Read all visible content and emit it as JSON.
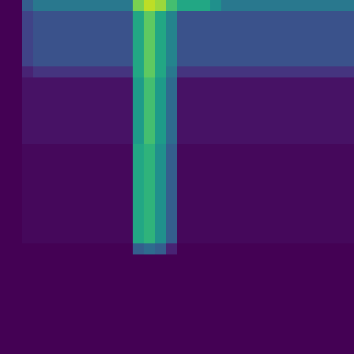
{
  "chart_data": {
    "type": "heatmap",
    "color": "viridis",
    "color_range": [
      0,
      1
    ],
    "tick_labels": false,
    "cells": [
      [
        0,
        0,
        0.3,
        0.4,
        0.4,
        0.4,
        0.4,
        0.4,
        0.4,
        0.4,
        0.4,
        0.4,
        0.8,
        0.9,
        0.85,
        0.7,
        0.6,
        0.6,
        0.6,
        0.5,
        0.4,
        0.4,
        0.4,
        0.4,
        0.4,
        0.4,
        0.4,
        0.4,
        0.4,
        0.4,
        0.4,
        0.4
      ],
      [
        0,
        0,
        0.2,
        0.25,
        0.25,
        0.25,
        0.25,
        0.25,
        0.25,
        0.25,
        0.25,
        0.25,
        0.6,
        0.75,
        0.6,
        0.45,
        0.25,
        0.25,
        0.25,
        0.25,
        0.25,
        0.25,
        0.25,
        0.25,
        0.25,
        0.25,
        0.25,
        0.25,
        0.25,
        0.25,
        0.25,
        0.25
      ],
      [
        0,
        0,
        0.2,
        0.25,
        0.25,
        0.25,
        0.25,
        0.25,
        0.25,
        0.25,
        0.25,
        0.25,
        0.6,
        0.75,
        0.6,
        0.45,
        0.25,
        0.25,
        0.25,
        0.25,
        0.25,
        0.25,
        0.25,
        0.25,
        0.25,
        0.25,
        0.25,
        0.25,
        0.25,
        0.25,
        0.25,
        0.25
      ],
      [
        0,
        0,
        0.2,
        0.25,
        0.25,
        0.25,
        0.25,
        0.25,
        0.25,
        0.25,
        0.25,
        0.25,
        0.6,
        0.75,
        0.6,
        0.45,
        0.25,
        0.25,
        0.25,
        0.25,
        0.25,
        0.25,
        0.25,
        0.25,
        0.25,
        0.25,
        0.25,
        0.25,
        0.25,
        0.25,
        0.25,
        0.25
      ],
      [
        0,
        0,
        0.2,
        0.25,
        0.25,
        0.25,
        0.25,
        0.25,
        0.25,
        0.25,
        0.25,
        0.25,
        0.6,
        0.75,
        0.6,
        0.45,
        0.25,
        0.25,
        0.25,
        0.25,
        0.25,
        0.25,
        0.25,
        0.25,
        0.25,
        0.25,
        0.25,
        0.25,
        0.25,
        0.25,
        0.25,
        0.25
      ],
      [
        0,
        0,
        0.2,
        0.25,
        0.25,
        0.25,
        0.25,
        0.25,
        0.25,
        0.25,
        0.25,
        0.25,
        0.6,
        0.75,
        0.6,
        0.45,
        0.25,
        0.25,
        0.25,
        0.25,
        0.25,
        0.25,
        0.25,
        0.25,
        0.25,
        0.25,
        0.25,
        0.25,
        0.25,
        0.25,
        0.25,
        0.25
      ],
      [
        0,
        0,
        0.1,
        0.15,
        0.15,
        0.15,
        0.15,
        0.15,
        0.15,
        0.15,
        0.15,
        0.15,
        0.6,
        0.75,
        0.6,
        0.4,
        0.15,
        0.15,
        0.15,
        0.15,
        0.15,
        0.15,
        0.15,
        0.15,
        0.15,
        0.15,
        0.15,
        0.15,
        0.15,
        0.15,
        0.15,
        0.15
      ],
      [
        0,
        0,
        0.05,
        0.05,
        0.05,
        0.05,
        0.05,
        0.05,
        0.05,
        0.05,
        0.05,
        0.05,
        0.55,
        0.7,
        0.55,
        0.35,
        0.05,
        0.05,
        0.05,
        0.05,
        0.05,
        0.05,
        0.05,
        0.05,
        0.05,
        0.05,
        0.05,
        0.05,
        0.05,
        0.05,
        0.05,
        0.05
      ],
      [
        0,
        0,
        0.05,
        0.05,
        0.05,
        0.05,
        0.05,
        0.05,
        0.05,
        0.05,
        0.05,
        0.05,
        0.55,
        0.7,
        0.55,
        0.35,
        0.05,
        0.05,
        0.05,
        0.05,
        0.05,
        0.05,
        0.05,
        0.05,
        0.05,
        0.05,
        0.05,
        0.05,
        0.05,
        0.05,
        0.05,
        0.05
      ],
      [
        0,
        0,
        0.05,
        0.05,
        0.05,
        0.05,
        0.05,
        0.05,
        0.05,
        0.05,
        0.05,
        0.05,
        0.55,
        0.7,
        0.55,
        0.35,
        0.05,
        0.05,
        0.05,
        0.05,
        0.05,
        0.05,
        0.05,
        0.05,
        0.05,
        0.05,
        0.05,
        0.05,
        0.05,
        0.05,
        0.05,
        0.05
      ],
      [
        0,
        0,
        0.05,
        0.05,
        0.05,
        0.05,
        0.05,
        0.05,
        0.05,
        0.05,
        0.05,
        0.05,
        0.55,
        0.7,
        0.55,
        0.35,
        0.05,
        0.05,
        0.05,
        0.05,
        0.05,
        0.05,
        0.05,
        0.05,
        0.05,
        0.05,
        0.05,
        0.05,
        0.05,
        0.05,
        0.05,
        0.05
      ],
      [
        0,
        0,
        0.05,
        0.05,
        0.05,
        0.05,
        0.05,
        0.05,
        0.05,
        0.05,
        0.05,
        0.05,
        0.55,
        0.7,
        0.55,
        0.35,
        0.05,
        0.05,
        0.05,
        0.05,
        0.05,
        0.05,
        0.05,
        0.05,
        0.05,
        0.05,
        0.05,
        0.05,
        0.05,
        0.05,
        0.05,
        0.05
      ],
      [
        0,
        0,
        0.05,
        0.05,
        0.05,
        0.05,
        0.05,
        0.05,
        0.05,
        0.05,
        0.05,
        0.05,
        0.55,
        0.7,
        0.55,
        0.35,
        0.05,
        0.05,
        0.05,
        0.05,
        0.05,
        0.05,
        0.05,
        0.05,
        0.05,
        0.05,
        0.05,
        0.05,
        0.05,
        0.05,
        0.05,
        0.05
      ],
      [
        0,
        0,
        0.02,
        0.02,
        0.02,
        0.02,
        0.02,
        0.02,
        0.02,
        0.02,
        0.02,
        0.02,
        0.6,
        0.65,
        0.5,
        0.3,
        0.02,
        0.02,
        0.02,
        0.02,
        0.02,
        0.02,
        0.02,
        0.02,
        0.02,
        0.02,
        0.02,
        0.02,
        0.02,
        0.02,
        0.02,
        0.02
      ],
      [
        0,
        0,
        0.02,
        0.02,
        0.02,
        0.02,
        0.02,
        0.02,
        0.02,
        0.02,
        0.02,
        0.02,
        0.6,
        0.65,
        0.5,
        0.3,
        0.02,
        0.02,
        0.02,
        0.02,
        0.02,
        0.02,
        0.02,
        0.02,
        0.02,
        0.02,
        0.02,
        0.02,
        0.02,
        0.02,
        0.02,
        0.02
      ],
      [
        0,
        0,
        0.02,
        0.02,
        0.02,
        0.02,
        0.02,
        0.02,
        0.02,
        0.02,
        0.02,
        0.02,
        0.6,
        0.65,
        0.5,
        0.3,
        0.02,
        0.02,
        0.02,
        0.02,
        0.02,
        0.02,
        0.02,
        0.02,
        0.02,
        0.02,
        0.02,
        0.02,
        0.02,
        0.02,
        0.02,
        0.02
      ],
      [
        0,
        0,
        0.02,
        0.02,
        0.02,
        0.02,
        0.02,
        0.02,
        0.02,
        0.02,
        0.02,
        0.02,
        0.6,
        0.65,
        0.5,
        0.3,
        0.02,
        0.02,
        0.02,
        0.02,
        0.02,
        0.02,
        0.02,
        0.02,
        0.02,
        0.02,
        0.02,
        0.02,
        0.02,
        0.02,
        0.02,
        0.02
      ],
      [
        0,
        0,
        0.02,
        0.02,
        0.02,
        0.02,
        0.02,
        0.02,
        0.02,
        0.02,
        0.02,
        0.02,
        0.6,
        0.65,
        0.5,
        0.3,
        0.02,
        0.02,
        0.02,
        0.02,
        0.02,
        0.02,
        0.02,
        0.02,
        0.02,
        0.02,
        0.02,
        0.02,
        0.02,
        0.02,
        0.02,
        0.02
      ],
      [
        0,
        0,
        0.02,
        0.02,
        0.02,
        0.02,
        0.02,
        0.02,
        0.02,
        0.02,
        0.02,
        0.02,
        0.6,
        0.65,
        0.5,
        0.3,
        0.02,
        0.02,
        0.02,
        0.02,
        0.02,
        0.02,
        0.02,
        0.02,
        0.02,
        0.02,
        0.02,
        0.02,
        0.02,
        0.02,
        0.02,
        0.02
      ],
      [
        0,
        0,
        0.02,
        0.02,
        0.02,
        0.02,
        0.02,
        0.02,
        0.02,
        0.02,
        0.02,
        0.02,
        0.6,
        0.65,
        0.5,
        0.3,
        0.02,
        0.02,
        0.02,
        0.02,
        0.02,
        0.02,
        0.02,
        0.02,
        0.02,
        0.02,
        0.02,
        0.02,
        0.02,
        0.02,
        0.02,
        0.02
      ],
      [
        0,
        0,
        0.02,
        0.02,
        0.02,
        0.02,
        0.02,
        0.02,
        0.02,
        0.02,
        0.02,
        0.02,
        0.6,
        0.65,
        0.5,
        0.3,
        0.02,
        0.02,
        0.02,
        0.02,
        0.02,
        0.02,
        0.02,
        0.02,
        0.02,
        0.02,
        0.02,
        0.02,
        0.02,
        0.02,
        0.02,
        0.02
      ],
      [
        0,
        0,
        0.02,
        0.02,
        0.02,
        0.02,
        0.02,
        0.02,
        0.02,
        0.02,
        0.02,
        0.02,
        0.6,
        0.65,
        0.5,
        0.3,
        0.02,
        0.02,
        0.02,
        0.02,
        0.02,
        0.02,
        0.02,
        0.02,
        0.02,
        0.02,
        0.02,
        0.02,
        0.02,
        0.02,
        0.02,
        0.02
      ],
      [
        0,
        0,
        0,
        0,
        0,
        0,
        0,
        0,
        0,
        0,
        0,
        0,
        0.3,
        0.35,
        0.3,
        0.1,
        0,
        0,
        0,
        0,
        0,
        0,
        0,
        0,
        0,
        0,
        0,
        0,
        0,
        0,
        0,
        0
      ],
      [
        0,
        0,
        0,
        0,
        0,
        0,
        0,
        0,
        0,
        0,
        0,
        0,
        0,
        0,
        0,
        0,
        0,
        0,
        0,
        0,
        0,
        0,
        0,
        0,
        0,
        0,
        0,
        0,
        0,
        0,
        0,
        0
      ],
      [
        0,
        0,
        0,
        0,
        0,
        0,
        0,
        0,
        0,
        0,
        0,
        0,
        0,
        0,
        0,
        0,
        0,
        0,
        0,
        0,
        0,
        0,
        0,
        0,
        0,
        0,
        0,
        0,
        0,
        0,
        0,
        0
      ],
      [
        0,
        0,
        0,
        0,
        0,
        0,
        0,
        0,
        0,
        0,
        0,
        0,
        0,
        0,
        0,
        0,
        0,
        0,
        0,
        0,
        0,
        0,
        0,
        0,
        0,
        0,
        0,
        0,
        0,
        0,
        0,
        0
      ],
      [
        0,
        0,
        0,
        0,
        0,
        0,
        0,
        0,
        0,
        0,
        0,
        0,
        0,
        0,
        0,
        0,
        0,
        0,
        0,
        0,
        0,
        0,
        0,
        0,
        0,
        0,
        0,
        0,
        0,
        0,
        0,
        0
      ],
      [
        0,
        0,
        0,
        0,
        0,
        0,
        0,
        0,
        0,
        0,
        0,
        0,
        0,
        0,
        0,
        0,
        0,
        0,
        0,
        0,
        0,
        0,
        0,
        0,
        0,
        0,
        0,
        0,
        0,
        0,
        0,
        0
      ],
      [
        0,
        0,
        0,
        0,
        0,
        0,
        0,
        0,
        0,
        0,
        0,
        0,
        0,
        0,
        0,
        0,
        0,
        0,
        0,
        0,
        0,
        0,
        0,
        0,
        0,
        0,
        0,
        0,
        0,
        0,
        0,
        0
      ],
      [
        0,
        0,
        0,
        0,
        0,
        0,
        0,
        0,
        0,
        0,
        0,
        0,
        0,
        0,
        0,
        0,
        0,
        0,
        0,
        0,
        0,
        0,
        0,
        0,
        0,
        0,
        0,
        0,
        0,
        0,
        0,
        0
      ],
      [
        0,
        0,
        0,
        0,
        0,
        0,
        0,
        0,
        0,
        0,
        0,
        0,
        0,
        0,
        0,
        0,
        0,
        0,
        0,
        0,
        0,
        0,
        0,
        0,
        0,
        0,
        0,
        0,
        0,
        0,
        0,
        0
      ],
      [
        0,
        0,
        0,
        0,
        0,
        0,
        0,
        0,
        0,
        0,
        0,
        0,
        0,
        0,
        0,
        0,
        0,
        0,
        0,
        0,
        0,
        0,
        0,
        0,
        0,
        0,
        0,
        0,
        0,
        0,
        0,
        0
      ]
    ]
  }
}
